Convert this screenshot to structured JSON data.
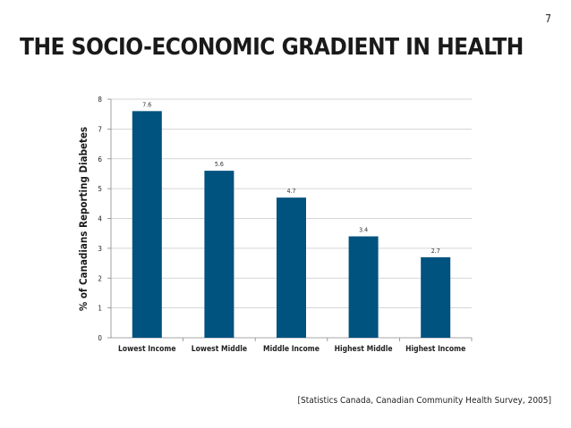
{
  "page_number": "7",
  "title": "THE SOCIO-ECONOMIC GRADIENT IN HEALTH",
  "source": "[Statistics Canada, Canadian Community Health Survey, 2005]",
  "colors": {
    "bar": "#00527f",
    "grid": "#c8c8c8",
    "axis": "#888888"
  },
  "chart_data": {
    "type": "bar",
    "title": "",
    "xlabel": "",
    "ylabel": "% of Canadians Reporting Diabetes",
    "categories": [
      "Lowest Income",
      "Lowest Middle",
      "Middle Income",
      "Highest Middle",
      "Highest Income"
    ],
    "values": [
      7.6,
      5.6,
      4.7,
      3.4,
      2.7
    ],
    "value_labels": [
      "7.6",
      "5.6",
      "4.7",
      "3.4",
      "2.7"
    ],
    "ylim": [
      0,
      8
    ],
    "yticks": [
      "0",
      "1",
      "2",
      "3",
      "4",
      "5",
      "6",
      "7",
      "8"
    ],
    "grid": true,
    "legend": "none"
  }
}
